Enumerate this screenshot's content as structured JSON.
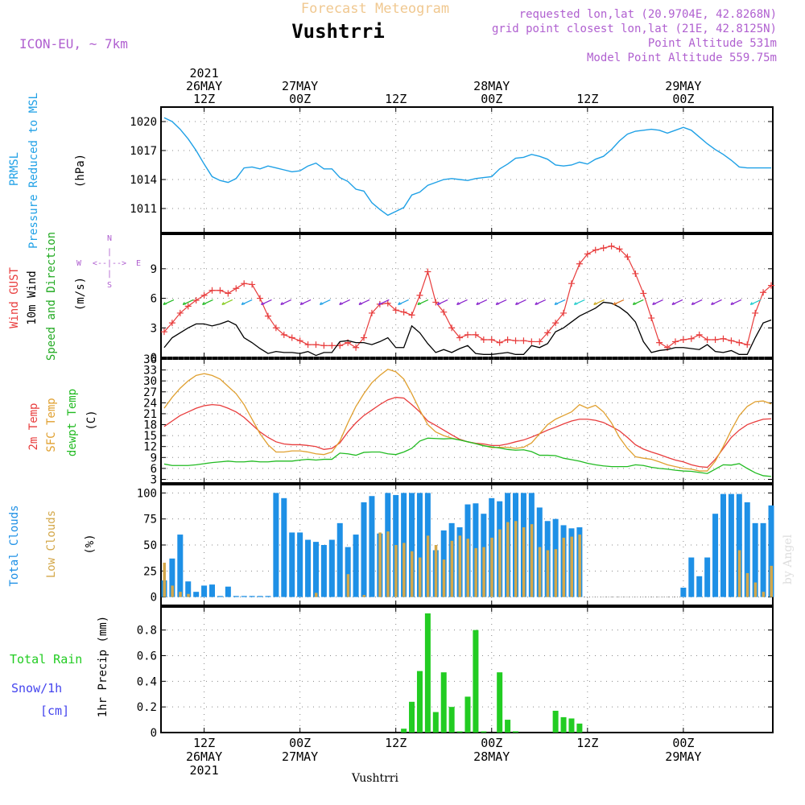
{
  "header": {
    "subtitle": "Forecast Meteogram",
    "station": "Vushtrri",
    "model": "ICON-EU, ~ 7km",
    "info": [
      "requested lon,lat (20.9704E, 42.8268N)",
      "grid point closest lon,lat (21E, 42.8125N)",
      "Point Altitude 531m",
      "Model Point Altitude 559.75m"
    ],
    "footer_station": "Vushtrri",
    "watermark": "by Angel"
  },
  "colors": {
    "pressure": "#1ea0e6",
    "gust": "#e83c3c",
    "wind10m": "#000000",
    "wind_label_green": "#22aa22",
    "t2m": "#e83c3c",
    "sfc": "#e0a030",
    "dewpt": "#22bb22",
    "total_clouds": "#1e90e6",
    "low_clouds": "#d4a84a",
    "rain": "#22cc22",
    "snow_label": "#4444ee",
    "info_purple": "#b060d0",
    "subtitle_color": "#f0c890",
    "grid": "#888888"
  },
  "time_axis": {
    "top_labels": [
      {
        "t": 12,
        "lines": [
          "2021",
          "26MAY",
          "12Z"
        ]
      },
      {
        "t": 24,
        "lines": [
          "27MAY",
          "00Z"
        ]
      },
      {
        "t": 36,
        "lines": [
          "12Z"
        ]
      },
      {
        "t": 48,
        "lines": [
          "28MAY",
          "00Z"
        ]
      },
      {
        "t": 60,
        "lines": [
          "12Z"
        ]
      },
      {
        "t": 72,
        "lines": [
          "29MAY",
          "00Z"
        ]
      }
    ],
    "bottom_labels": [
      {
        "t": 12,
        "lines": [
          "12Z",
          "26MAY",
          "2021"
        ]
      },
      {
        "t": 24,
        "lines": [
          "00Z",
          "27MAY"
        ]
      },
      {
        "t": 36,
        "lines": [
          "12Z"
        ]
      },
      {
        "t": 48,
        "lines": [
          "00Z",
          "28MAY"
        ]
      },
      {
        "t": 60,
        "lines": [
          "12Z"
        ]
      },
      {
        "t": 72,
        "lines": [
          "00Z",
          "29MAY"
        ]
      }
    ]
  },
  "compass": {
    "n": "N",
    "s": "S",
    "e": "E",
    "w": "W"
  },
  "chart_data": [
    {
      "type": "line",
      "title": "PRMSL Pressure Reduced to MSL",
      "ylabel_lines": [
        "PRMSL",
        "Pressure Reduced to MSL"
      ],
      "unit": "(hPa)",
      "ylim": [
        1008.5,
        1021.5
      ],
      "yticks": [
        1011,
        1014,
        1017,
        1020
      ],
      "x_hours": [
        7,
        7.5,
        8,
        9,
        10,
        11,
        12,
        13,
        14,
        15,
        16,
        17,
        18,
        19,
        20,
        21,
        22,
        23,
        24,
        25,
        26,
        27,
        28,
        29,
        30,
        31,
        32,
        33,
        34,
        35,
        36,
        37,
        38,
        39,
        40,
        41,
        42,
        43,
        44,
        45,
        46,
        47,
        48,
        49,
        50,
        51,
        52,
        53,
        54,
        55,
        56,
        57,
        58,
        59,
        60,
        61,
        62,
        63,
        64,
        65,
        66,
        67,
        68,
        69,
        70,
        71,
        72,
        73,
        74,
        75,
        76,
        77,
        78,
        79,
        80,
        81,
        82,
        83
      ],
      "series": [
        {
          "values": [
            1020.4,
            1020.2,
            1020.0,
            1019.2,
            1018.2,
            1017.0,
            1015.6,
            1014.3,
            1013.9,
            1013.7,
            1014.1,
            1015.2,
            1015.3,
            1015.1,
            1015.4,
            1015.2,
            1015.0,
            1014.8,
            1014.9,
            1015.4,
            1015.7,
            1015.1,
            1015.1,
            1014.2,
            1013.8,
            1013.0,
            1012.8,
            1011.6,
            1010.9,
            1010.3,
            1010.7,
            1011.1,
            1012.4,
            1012.7,
            1013.4,
            1013.7,
            1014.0,
            1014.1,
            1014.0,
            1013.9,
            1014.1,
            1014.2,
            1014.3,
            1015.1,
            1015.6,
            1016.2,
            1016.3,
            1016.6,
            1016.4,
            1016.1,
            1015.5,
            1015.4,
            1015.5,
            1015.8,
            1015.6,
            1016.1,
            1016.4,
            1017.1,
            1018.0,
            1018.7,
            1019.0,
            1019.1,
            1019.2,
            1019.1,
            1018.8,
            1019.1,
            1019.4,
            1019.1,
            1018.4,
            1017.7,
            1017.1,
            1016.6,
            1016.0,
            1015.3,
            1015.2,
            1015.2,
            1015.2,
            1015.2
          ]
        }
      ]
    },
    {
      "type": "line",
      "title": "Wind GUST / 10m Wind Speed and Direction",
      "ylabel_lines": [
        "Wind GUST",
        "10m Wind",
        "Speed and Direction"
      ],
      "unit": "(m/s)",
      "ylim": [
        0,
        12.5
      ],
      "yticks": [
        0,
        3,
        6,
        9
      ],
      "x_hours": [
        7,
        8,
        9,
        10,
        11,
        12,
        13,
        14,
        15,
        16,
        17,
        18,
        19,
        20,
        21,
        22,
        23,
        24,
        25,
        26,
        27,
        28,
        29,
        30,
        31,
        32,
        33,
        34,
        35,
        36,
        37,
        38,
        39,
        40,
        41,
        42,
        43,
        44,
        45,
        46,
        47,
        48,
        49,
        50,
        51,
        52,
        53,
        54,
        55,
        56,
        57,
        58,
        59,
        60,
        61,
        62,
        63,
        64,
        65,
        66,
        67,
        68,
        69,
        70,
        71,
        72,
        73,
        74,
        75,
        76,
        77,
        78,
        79,
        80,
        81,
        82,
        83
      ],
      "series": [
        {
          "name": "Wind GUST",
          "values": [
            2.6,
            3.5,
            4.5,
            5.2,
            5.8,
            6.3,
            6.8,
            6.8,
            6.5,
            7.0,
            7.5,
            7.4,
            6.0,
            4.2,
            3.0,
            2.3,
            2.0,
            1.7,
            1.3,
            1.3,
            1.2,
            1.2,
            1.2,
            1.5,
            1.0,
            2.0,
            4.5,
            5.4,
            5.5,
            4.8,
            4.6,
            4.3,
            6.3,
            8.7,
            5.6,
            4.6,
            3.0,
            2.0,
            2.3,
            2.3,
            1.8,
            1.8,
            1.5,
            1.8,
            1.7,
            1.7,
            1.6,
            1.6,
            2.5,
            3.5,
            4.5,
            7.5,
            9.5,
            10.5,
            10.9,
            11.1,
            11.3,
            11.0,
            10.2,
            8.5,
            6.5,
            4.0,
            1.5,
            1.0,
            1.6,
            1.8,
            1.9,
            2.3,
            1.8,
            1.8,
            1.9,
            1.7,
            1.5,
            1.3,
            4.5,
            6.6,
            7.3
          ]
        },
        {
          "name": "10m Wind",
          "values": [
            1.0,
            2.0,
            2.5,
            3.0,
            3.4,
            3.4,
            3.2,
            3.4,
            3.7,
            3.3,
            2.0,
            1.5,
            0.9,
            0.4,
            0.6,
            0.5,
            0.5,
            0.4,
            0.6,
            0.2,
            0.5,
            0.5,
            1.6,
            1.7,
            1.5,
            1.5,
            1.3,
            1.6,
            2.0,
            1.0,
            1.0,
            3.2,
            2.5,
            1.4,
            0.5,
            0.8,
            0.5,
            0.9,
            1.2,
            0.4,
            0.3,
            0.3,
            0.4,
            0.5,
            0.3,
            0.3,
            1.2,
            1.0,
            1.4,
            2.6,
            3.0,
            3.6,
            4.2,
            4.6,
            5.0,
            5.6,
            5.5,
            5.1,
            4.5,
            3.6,
            1.6,
            0.5,
            0.7,
            0.8,
            1.0,
            1.0,
            0.9,
            0.8,
            1.3,
            0.6,
            0.5,
            0.7,
            0.3,
            0.3,
            2.0,
            3.5,
            3.8
          ]
        }
      ]
    },
    {
      "type": "line",
      "title": "2m Temp / SFC Temp / dewpt Temp",
      "ylabel_lines": [
        "2m Temp",
        "SFC Temp",
        "dewpt Temp"
      ],
      "unit": "(C)",
      "ylim": [
        2,
        36
      ],
      "yticks": [
        3,
        6,
        9,
        12,
        15,
        18,
        21,
        24,
        27,
        30,
        33,
        36
      ],
      "x_hours": [
        7,
        8,
        9,
        10,
        11,
        12,
        13,
        14,
        15,
        16,
        17,
        18,
        19,
        20,
        21,
        22,
        23,
        24,
        25,
        26,
        27,
        28,
        29,
        30,
        31,
        32,
        33,
        34,
        35,
        36,
        37,
        38,
        39,
        40,
        41,
        42,
        43,
        44,
        45,
        46,
        47,
        48,
        49,
        50,
        51,
        52,
        53,
        54,
        55,
        56,
        57,
        58,
        59,
        60,
        61,
        62,
        63,
        64,
        65,
        66,
        67,
        68,
        69,
        70,
        71,
        72,
        73,
        74,
        75,
        76,
        77,
        78,
        79,
        80,
        81,
        82,
        83
      ],
      "series": [
        {
          "name": "2m Temp",
          "values": [
            17.5,
            19,
            20.5,
            21.5,
            22.5,
            23.2,
            23.5,
            23.3,
            22.5,
            21.5,
            20,
            18,
            16,
            14.5,
            13.3,
            12.7,
            12.5,
            12.5,
            12.3,
            12.0,
            11.2,
            11.5,
            13,
            16,
            18.5,
            20.5,
            22,
            23.5,
            24.8,
            25.5,
            25.3,
            23.5,
            21.5,
            19,
            17.8,
            16.5,
            15.2,
            14,
            13.3,
            12.9,
            12.7,
            12.3,
            12.3,
            12.7,
            13.3,
            13.8,
            14.6,
            15.5,
            16.5,
            17.3,
            18.2,
            19,
            19.5,
            19.5,
            19.2,
            18.6,
            17.5,
            16.3,
            14.5,
            12.5,
            11.3,
            10.5,
            9.8,
            9,
            8.3,
            7.8,
            7.0,
            6.5,
            6.3,
            8.5,
            11.5,
            14.5,
            16.5,
            18.0,
            18.8,
            19.5,
            19.6
          ]
        },
        {
          "name": "SFC Temp",
          "values": [
            22.5,
            25.5,
            28,
            30,
            31.5,
            32,
            31.5,
            30.5,
            28.5,
            26.5,
            23.5,
            19.5,
            15.5,
            12.5,
            10.5,
            10.5,
            10.8,
            10.8,
            10.5,
            10.0,
            9.8,
            10.5,
            13.5,
            18.5,
            23,
            26.5,
            29.5,
            31.5,
            33.2,
            32.5,
            30.5,
            26.5,
            22,
            18,
            16,
            15,
            14.3,
            13.8,
            13.3,
            12.8,
            12.3,
            11.7,
            11.8,
            11.8,
            11.5,
            11.8,
            13,
            15.5,
            18,
            19.5,
            20.5,
            21.5,
            23.5,
            22.5,
            23.3,
            21.5,
            18.5,
            14.5,
            11.5,
            9.2,
            8.8,
            8.5,
            7.8,
            7,
            6.5,
            6,
            5.8,
            5.3,
            5.3,
            8,
            12,
            16.5,
            20.5,
            23,
            24.3,
            24.5,
            23.7
          ]
        },
        {
          "name": "dewpt Temp",
          "values": [
            7.2,
            6.8,
            6.8,
            6.8,
            7.0,
            7.3,
            7.6,
            7.8,
            8.0,
            7.8,
            7.8,
            8.0,
            7.8,
            7.8,
            8.0,
            8.0,
            8.0,
            8.3,
            8.5,
            8.3,
            8.5,
            8.5,
            10.2,
            10.0,
            9.6,
            10.4,
            10.5,
            10.5,
            10.0,
            9.8,
            10.5,
            11.5,
            13.5,
            14.3,
            14.2,
            14.1,
            14.2,
            13.8,
            13.3,
            12.8,
            12.2,
            11.9,
            11.6,
            11.2,
            11.0,
            11.1,
            10.6,
            9.6,
            9.6,
            9.5,
            8.8,
            8.4,
            8.0,
            7.4,
            7.0,
            6.7,
            6.5,
            6.5,
            6.5,
            7.0,
            6.8,
            6.3,
            6.0,
            5.8,
            5.5,
            5.3,
            5.2,
            4.9,
            4.6,
            5.8,
            7.0,
            6.9,
            7.3,
            6.0,
            4.8,
            4.0,
            3.8
          ]
        }
      ]
    },
    {
      "type": "bar",
      "title": "Total Clouds / Low Clouds",
      "ylabel_lines": [
        "Total Clouds",
        "Low Clouds"
      ],
      "unit": "(%)",
      "ylim": [
        -8,
        108
      ],
      "yticks": [
        0,
        25,
        50,
        75,
        100
      ],
      "x_hours": [
        7,
        8,
        9,
        10,
        11,
        12,
        13,
        14,
        15,
        16,
        17,
        18,
        19,
        20,
        21,
        22,
        23,
        24,
        25,
        26,
        27,
        28,
        29,
        30,
        31,
        32,
        33,
        34,
        35,
        36,
        37,
        38,
        39,
        40,
        41,
        42,
        43,
        44,
        45,
        46,
        47,
        48,
        49,
        50,
        51,
        52,
        53,
        54,
        55,
        56,
        57,
        58,
        59,
        60,
        61,
        62,
        63,
        64,
        65,
        66,
        67,
        68,
        69,
        70,
        71,
        72,
        73,
        74,
        75,
        76,
        77,
        78,
        79,
        80,
        81,
        82,
        83
      ],
      "series": [
        {
          "name": "Total Clouds",
          "values": [
            16,
            37,
            60,
            15,
            5,
            11,
            12,
            1,
            10,
            1,
            1,
            1,
            1,
            1,
            100,
            95,
            62,
            62,
            55,
            53,
            50,
            55,
            71,
            48,
            60,
            91,
            97,
            61,
            100,
            98,
            100,
            100,
            100,
            100,
            45,
            64,
            71,
            67,
            89,
            90,
            80,
            95,
            92,
            100,
            100,
            100,
            100,
            86,
            73,
            75,
            69,
            66,
            67,
            0,
            0,
            0,
            0,
            0,
            0,
            0,
            0,
            0,
            0,
            0,
            0,
            9,
            38,
            20,
            38,
            80,
            99,
            99,
            99,
            91,
            71,
            71,
            88
          ]
        },
        {
          "name": "Low Clouds",
          "values": [
            33,
            11,
            5,
            3,
            0,
            0,
            0,
            0,
            0,
            0,
            0,
            0,
            0,
            0,
            0,
            0,
            0,
            0,
            0,
            4,
            0,
            0,
            0,
            22,
            0,
            2,
            0,
            62,
            63,
            50,
            52,
            44,
            38,
            59,
            50,
            36,
            54,
            59,
            56,
            47,
            48,
            57,
            65,
            72,
            73,
            67,
            70,
            48,
            45,
            46,
            57,
            58,
            60,
            0,
            0,
            0,
            0,
            0,
            0,
            0,
            0,
            0,
            0,
            0,
            0,
            0,
            0,
            0,
            0,
            0,
            0,
            0,
            45,
            23,
            14,
            5,
            30
          ]
        }
      ]
    },
    {
      "type": "bar",
      "title": "1hr Precip",
      "ylabel_lines": [
        "1hr Precip (mm)"
      ],
      "side_labels": [
        "Total  Rain",
        "Snow/1h",
        "[cm]"
      ],
      "ylim": [
        0,
        0.98
      ],
      "yticks": [
        0,
        0.2,
        0.4,
        0.6,
        0.8
      ],
      "x_hours": [
        37,
        38,
        39,
        40,
        41,
        42,
        43,
        44,
        45,
        46,
        47,
        49,
        50,
        51,
        56,
        57,
        58,
        59
      ],
      "series": [
        {
          "name": "Total Rain",
          "values": [
            0.03,
            0.24,
            0.48,
            0.93,
            0.16,
            0.47,
            0.2,
            0.0,
            0.28,
            0.8,
            0.0,
            0.47,
            0.1,
            0.01,
            0.17,
            0.12,
            0.11,
            0.07
          ]
        }
      ]
    }
  ]
}
